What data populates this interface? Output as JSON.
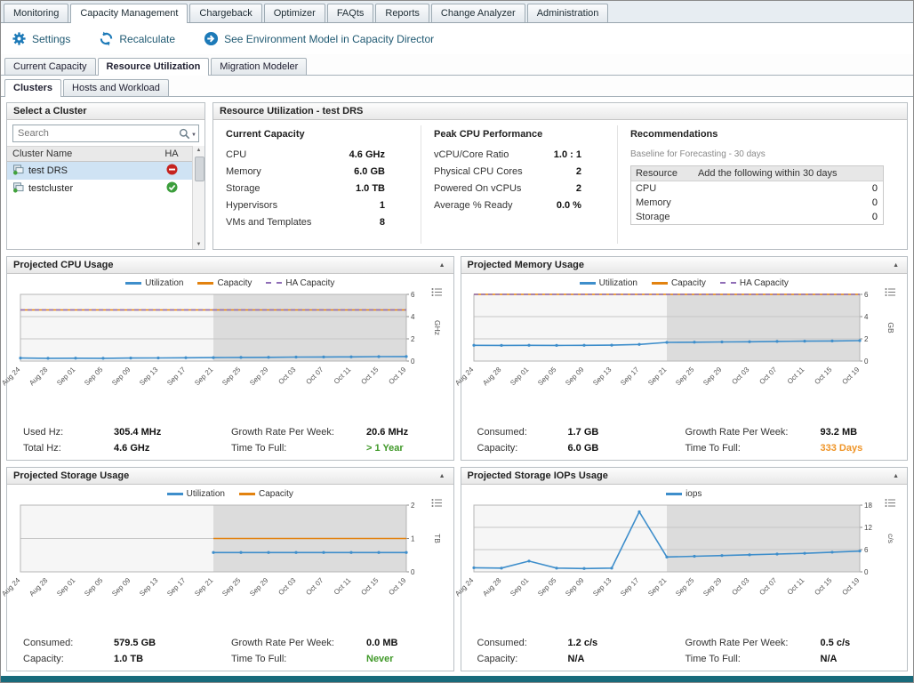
{
  "main_tabs": [
    {
      "label": "Monitoring",
      "active": false
    },
    {
      "label": "Capacity Management",
      "active": true
    },
    {
      "label": "Chargeback",
      "active": false
    },
    {
      "label": "Optimizer",
      "active": false
    },
    {
      "label": "FAQts",
      "active": false
    },
    {
      "label": "Reports",
      "active": false
    },
    {
      "label": "Change Analyzer",
      "active": false
    },
    {
      "label": "Administration",
      "active": false
    }
  ],
  "toolbar": {
    "settings_label": "Settings",
    "recalculate_label": "Recalculate",
    "environment_model_label": "See Environment Model in Capacity Director",
    "accent_color": "#1d7ab8"
  },
  "sub_tabs": [
    {
      "label": "Current Capacity",
      "active": false
    },
    {
      "label": "Resource Utilization",
      "active": true
    },
    {
      "label": "Migration Modeler",
      "active": false
    }
  ],
  "view_tabs": [
    {
      "label": "Clusters",
      "active": true
    },
    {
      "label": "Hosts and Workload",
      "active": false
    }
  ],
  "cluster_panel": {
    "title": "Select a Cluster",
    "search_placeholder": "Search",
    "columns": [
      "Cluster Name",
      "HA"
    ],
    "rows": [
      {
        "name": "test DRS",
        "ha": "disabled",
        "selected": true
      },
      {
        "name": "testcluster",
        "ha": "enabled",
        "selected": false
      }
    ],
    "ha_disabled_color": "#c5231f",
    "ha_enabled_color": "#3c9e3c"
  },
  "resource_panel": {
    "title": "Resource Utilization - test DRS",
    "current_capacity": {
      "title": "Current Capacity",
      "rows": [
        {
          "label": "CPU",
          "value": "4.6 GHz"
        },
        {
          "label": "Memory",
          "value": "6.0 GB"
        },
        {
          "label": "Storage",
          "value": "1.0 TB"
        },
        {
          "label": "Hypervisors",
          "value": "1"
        },
        {
          "label": "VMs and Templates",
          "value": "8"
        }
      ]
    },
    "peak_cpu": {
      "title": "Peak CPU Performance",
      "rows": [
        {
          "label": "vCPU/Core Ratio",
          "value": "1.0 : 1"
        },
        {
          "label": "Physical CPU Cores",
          "value": "2"
        },
        {
          "label": "Powered On vCPUs",
          "value": "2"
        },
        {
          "label": "Average % Ready",
          "value": "0.0 %"
        }
      ]
    },
    "recommendations": {
      "title": "Recommendations",
      "subtitle": "Baseline for Forecasting - 30 days",
      "columns": [
        "Resource",
        "Add the following within 30 days"
      ],
      "rows": [
        {
          "resource": "CPU",
          "value": "0"
        },
        {
          "resource": "Memory",
          "value": "0"
        },
        {
          "resource": "Storage",
          "value": "0"
        }
      ]
    }
  },
  "chart_data": [
    {
      "type": "line",
      "title": "Projected CPU Usage",
      "ylabel": "GHz",
      "ylim": [
        0,
        6
      ],
      "yticks": [
        0,
        2,
        4,
        6
      ],
      "legend_position": "top",
      "grid": true,
      "x": [
        "Aug 24",
        "Aug 28",
        "Sep 01",
        "Sep 05",
        "Sep 09",
        "Sep 13",
        "Sep 17",
        "Sep 21",
        "Sep 25",
        "Sep 29",
        "Oct 03",
        "Oct 07",
        "Oct 11",
        "Oct 15",
        "Oct 19"
      ],
      "forecast_start": "Sep 21",
      "series": [
        {
          "name": "Utilization",
          "color": "#3e8ecb",
          "dash": false,
          "values": [
            0.27,
            0.25,
            0.26,
            0.25,
            0.27,
            0.28,
            0.3,
            0.31,
            0.33,
            0.34,
            0.36,
            0.37,
            0.38,
            0.4,
            0.41
          ]
        },
        {
          "name": "Capacity",
          "color": "#e2820f",
          "dash": false,
          "values": [
            4.6,
            4.6,
            4.6,
            4.6,
            4.6,
            4.6,
            4.6,
            4.6,
            4.6,
            4.6,
            4.6,
            4.6,
            4.6,
            4.6,
            4.6
          ]
        },
        {
          "name": "HA Capacity",
          "color": "#8f6db6",
          "dash": true,
          "values": [
            4.6,
            4.6,
            4.6,
            4.6,
            4.6,
            4.6,
            4.6,
            4.6,
            4.6,
            4.6,
            4.6,
            4.6,
            4.6,
            4.6,
            4.6
          ]
        }
      ],
      "stats": [
        {
          "label": "Used Hz:",
          "value": "305.4 MHz",
          "color": ""
        },
        {
          "label": "Growth Rate Per Week:",
          "value": "20.6 MHz",
          "color": ""
        },
        {
          "label": "Total Hz:",
          "value": "4.6 GHz",
          "color": ""
        },
        {
          "label": "Time To Full:",
          "value": "> 1 Year",
          "color": "#409929"
        }
      ]
    },
    {
      "type": "line",
      "title": "Projected Memory Usage",
      "ylabel": "GB",
      "ylim": [
        0,
        6
      ],
      "yticks": [
        0,
        2,
        4,
        6
      ],
      "legend_position": "top",
      "grid": true,
      "x": [
        "Aug 24",
        "Aug 28",
        "Sep 01",
        "Sep 05",
        "Sep 09",
        "Sep 13",
        "Sep 17",
        "Sep 21",
        "Sep 25",
        "Sep 29",
        "Oct 03",
        "Oct 07",
        "Oct 11",
        "Oct 15",
        "Oct 19"
      ],
      "forecast_start": "Sep 21",
      "series": [
        {
          "name": "Utilization",
          "color": "#3e8ecb",
          "dash": false,
          "values": [
            1.42,
            1.41,
            1.42,
            1.41,
            1.42,
            1.43,
            1.5,
            1.68,
            1.7,
            1.72,
            1.74,
            1.77,
            1.79,
            1.81,
            1.84
          ]
        },
        {
          "name": "Capacity",
          "color": "#e2820f",
          "dash": false,
          "values": [
            6.0,
            6.0,
            6.0,
            6.0,
            6.0,
            6.0,
            6.0,
            6.0,
            6.0,
            6.0,
            6.0,
            6.0,
            6.0,
            6.0,
            6.0
          ]
        },
        {
          "name": "HA Capacity",
          "color": "#8f6db6",
          "dash": true,
          "values": [
            6.0,
            6.0,
            6.0,
            6.0,
            6.0,
            6.0,
            6.0,
            6.0,
            6.0,
            6.0,
            6.0,
            6.0,
            6.0,
            6.0,
            6.0
          ]
        }
      ],
      "stats": [
        {
          "label": "Consumed:",
          "value": "1.7 GB",
          "color": ""
        },
        {
          "label": "Growth Rate Per Week:",
          "value": "93.2 MB",
          "color": ""
        },
        {
          "label": "Capacity:",
          "value": "6.0 GB",
          "color": ""
        },
        {
          "label": "Time To Full:",
          "value": "333 Days",
          "color": "#ef9426"
        }
      ]
    },
    {
      "type": "line",
      "title": "Projected Storage Usage",
      "ylabel": "TB",
      "ylim": [
        0,
        2
      ],
      "yticks": [
        0,
        1,
        2
      ],
      "legend_position": "top",
      "grid": true,
      "x": [
        "Aug 24",
        "Aug 28",
        "Sep 01",
        "Sep 05",
        "Sep 09",
        "Sep 13",
        "Sep 17",
        "Sep 21",
        "Sep 25",
        "Sep 29",
        "Oct 03",
        "Oct 07",
        "Oct 11",
        "Oct 15",
        "Oct 19"
      ],
      "forecast_start": "Sep 21",
      "series": [
        {
          "name": "Utilization",
          "color": "#3e8ecb",
          "dash": false,
          "values": [
            null,
            null,
            null,
            null,
            null,
            null,
            null,
            0.58,
            0.58,
            0.58,
            0.58,
            0.58,
            0.58,
            0.58,
            0.58
          ]
        },
        {
          "name": "Capacity",
          "color": "#e2820f",
          "dash": false,
          "values": [
            null,
            null,
            null,
            null,
            null,
            null,
            null,
            1.0,
            1.0,
            1.0,
            1.0,
            1.0,
            1.0,
            1.0,
            1.0
          ]
        }
      ],
      "stats": [
        {
          "label": "Consumed:",
          "value": "579.5 GB",
          "color": ""
        },
        {
          "label": "Growth Rate Per Week:",
          "value": "0.0 MB",
          "color": ""
        },
        {
          "label": "Capacity:",
          "value": "1.0 TB",
          "color": ""
        },
        {
          "label": "Time To Full:",
          "value": "Never",
          "color": "#409929"
        }
      ]
    },
    {
      "type": "line",
      "title": "Projected Storage IOPs Usage",
      "ylabel": "c/s",
      "ylim": [
        0,
        18
      ],
      "yticks": [
        0,
        6,
        12,
        18
      ],
      "legend_position": "top",
      "grid": true,
      "x": [
        "Aug 24",
        "Aug 28",
        "Sep 01",
        "Sep 05",
        "Sep 09",
        "Sep 13",
        "Sep 17",
        "Sep 21",
        "Sep 25",
        "Sep 29",
        "Oct 03",
        "Oct 07",
        "Oct 11",
        "Oct 15",
        "Oct 19"
      ],
      "forecast_start": "Sep 21",
      "series": [
        {
          "name": "iops",
          "color": "#3e8ecb",
          "dash": false,
          "values": [
            1.1,
            1.0,
            2.9,
            1.0,
            0.9,
            1.0,
            16.2,
            4.0,
            4.2,
            4.4,
            4.6,
            4.8,
            5.0,
            5.3,
            5.6
          ]
        }
      ],
      "stats": [
        {
          "label": "Consumed:",
          "value": "1.2 c/s",
          "color": ""
        },
        {
          "label": "Growth Rate Per Week:",
          "value": "0.5 c/s",
          "color": ""
        },
        {
          "label": "Capacity:",
          "value": "N/A",
          "color": ""
        },
        {
          "label": "Time To Full:",
          "value": "N/A",
          "color": ""
        }
      ]
    }
  ]
}
